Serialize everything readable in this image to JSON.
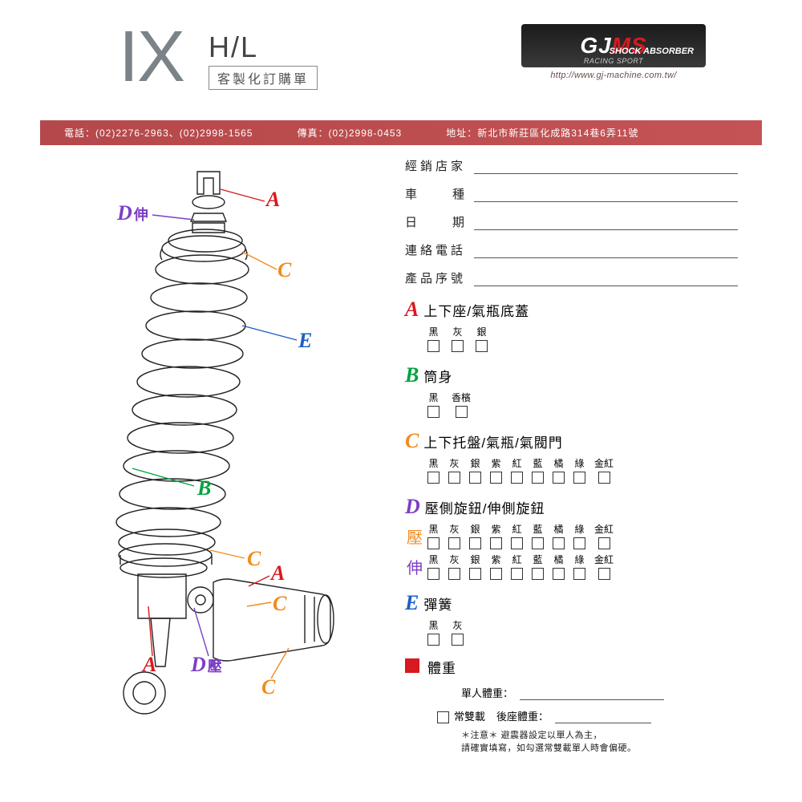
{
  "header": {
    "model": "IX",
    "variant": "H/L",
    "subtitle": "客製化訂購單",
    "brand_main": "GJ",
    "brand_accent": "MS",
    "brand_tag1": "RACING SPORT",
    "brand_tag2": "SHOCK ABSORBER",
    "url": "http://www.gj-machine.com.tw/"
  },
  "contact_bar": {
    "phone_label": "電話：",
    "phone": "(02)2276-2963、(02)2998-1565",
    "fax_label": "傳真：",
    "fax": "(02)2998-0453",
    "addr_label": "地址：",
    "addr": "新北市新莊區化成路314巷6弄11號"
  },
  "fields": {
    "dealer": "經銷店家",
    "model": "車種",
    "date": "日期",
    "phone": "連絡電話",
    "serial": "產品序號"
  },
  "sections": {
    "A": {
      "letter": "A",
      "title": "上下座/氣瓶底蓋",
      "color": "#d71920",
      "options": [
        "黑",
        "灰",
        "銀"
      ]
    },
    "B": {
      "letter": "B",
      "title": "筒身",
      "color": "#00a33e",
      "options": [
        "黑",
        "香檳"
      ]
    },
    "C": {
      "letter": "C",
      "title": "上下托盤/氣瓶/氣閥門",
      "color": "#f18c1e",
      "options": [
        "黑",
        "灰",
        "銀",
        "紫",
        "紅",
        "藍",
        "橘",
        "綠",
        "金紅"
      ]
    },
    "D": {
      "letter": "D",
      "title": "壓側旋鈕/伸側旋鈕",
      "color": "#7d3ec7",
      "row1_prefix": "壓",
      "row1_color": "#f18c1e",
      "row2_prefix": "伸",
      "row2_color": "#7d3ec7",
      "options": [
        "黑",
        "灰",
        "銀",
        "紫",
        "紅",
        "藍",
        "橘",
        "綠",
        "金紅"
      ]
    },
    "E": {
      "letter": "E",
      "title": "彈簧",
      "color": "#1b5fc1",
      "options": [
        "黑",
        "灰"
      ]
    },
    "W": {
      "title": "體重",
      "single": "單人體重：",
      "dual_check": "常雙載",
      "dual": "後座體重：",
      "note": "＊注意＊ 避震器設定以單人為主，\n請確實填寫，如勾選常雙載單人時會偏硬。"
    }
  },
  "callouts": {
    "A_top": "A",
    "D_ext": "D",
    "D_ext_sub": "伸",
    "C_top": "C",
    "E_mid": "E",
    "B_mid": "B",
    "C_low": "C",
    "A_res": "A",
    "C_res1": "C",
    "D_comp": "D",
    "D_comp_sub": "壓",
    "A_bot": "A",
    "C_res2": "C"
  },
  "style": {
    "bar_bg": "#b5484a",
    "accent_red": "#d71920",
    "text": "#222222",
    "header_gray": "#7b8388"
  }
}
